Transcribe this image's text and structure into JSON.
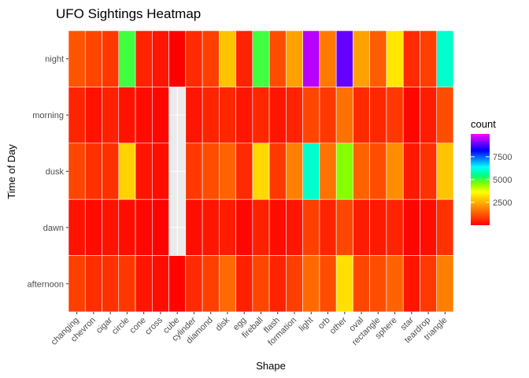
{
  "chart_data": {
    "type": "heatmap",
    "title": "UFO Sightings Heatmap",
    "xlabel": "Shape",
    "ylabel": "Time of Day",
    "x_categories": [
      "changing",
      "chevron",
      "cigar",
      "circle",
      "cone",
      "cross",
      "cube",
      "cylinder",
      "diamond",
      "disk",
      "egg",
      "fireball",
      "flash",
      "formation",
      "light",
      "orb",
      "other",
      "oval",
      "rectangle",
      "sphere",
      "star",
      "teardrop",
      "triangle"
    ],
    "y_categories": [
      "afternoon",
      "dawn",
      "dusk",
      "morning",
      "night"
    ],
    "legend": {
      "title": "count",
      "position": "right",
      "range": [
        0,
        10000
      ],
      "ticks": [
        2500,
        5000,
        7500
      ],
      "colors": [
        "#ff0000",
        "#ff4000",
        "#ff8000",
        "#ffbf00",
        "#ffff00",
        "#80ff00",
        "#00ff80",
        "#00ffff",
        "#0080ff",
        "#0000ff",
        "#8000ff",
        "#ff00ff"
      ]
    },
    "panel_background": "#ebebeb",
    "grid": true,
    "cells": [
      {
        "y": "night",
        "values": [
          1200,
          1000,
          800,
          5000,
          500,
          300,
          0,
          600,
          900,
          2800,
          500,
          5000,
          1100,
          2300,
          9500,
          1700,
          8900,
          2300,
          1300,
          3300,
          600,
          900,
          6000
        ]
      },
      {
        "y": "morning",
        "values": [
          500,
          250,
          450,
          250,
          150,
          80,
          null,
          300,
          500,
          550,
          300,
          550,
          300,
          500,
          1000,
          800,
          1600,
          600,
          550,
          800,
          100,
          400,
          1100
        ]
      },
      {
        "y": "dusk",
        "values": [
          1000,
          700,
          700,
          3000,
          300,
          200,
          null,
          800,
          1100,
          1400,
          600,
          3100,
          800,
          1800,
          6000,
          1600,
          4500,
          1400,
          1100,
          2000,
          350,
          700,
          2800
        ]
      },
      {
        "y": "dawn",
        "values": [
          250,
          150,
          250,
          200,
          100,
          40,
          null,
          200,
          300,
          400,
          100,
          450,
          200,
          300,
          900,
          500,
          1000,
          400,
          350,
          500,
          50,
          200,
          700
        ]
      },
      {
        "y": "afternoon",
        "values": [
          900,
          650,
          700,
          800,
          300,
          200,
          50,
          600,
          900,
          1500,
          450,
          1000,
          500,
          900,
          1500,
          1100,
          3200,
          1000,
          1100,
          1400,
          300,
          800,
          1800
        ]
      }
    ]
  }
}
